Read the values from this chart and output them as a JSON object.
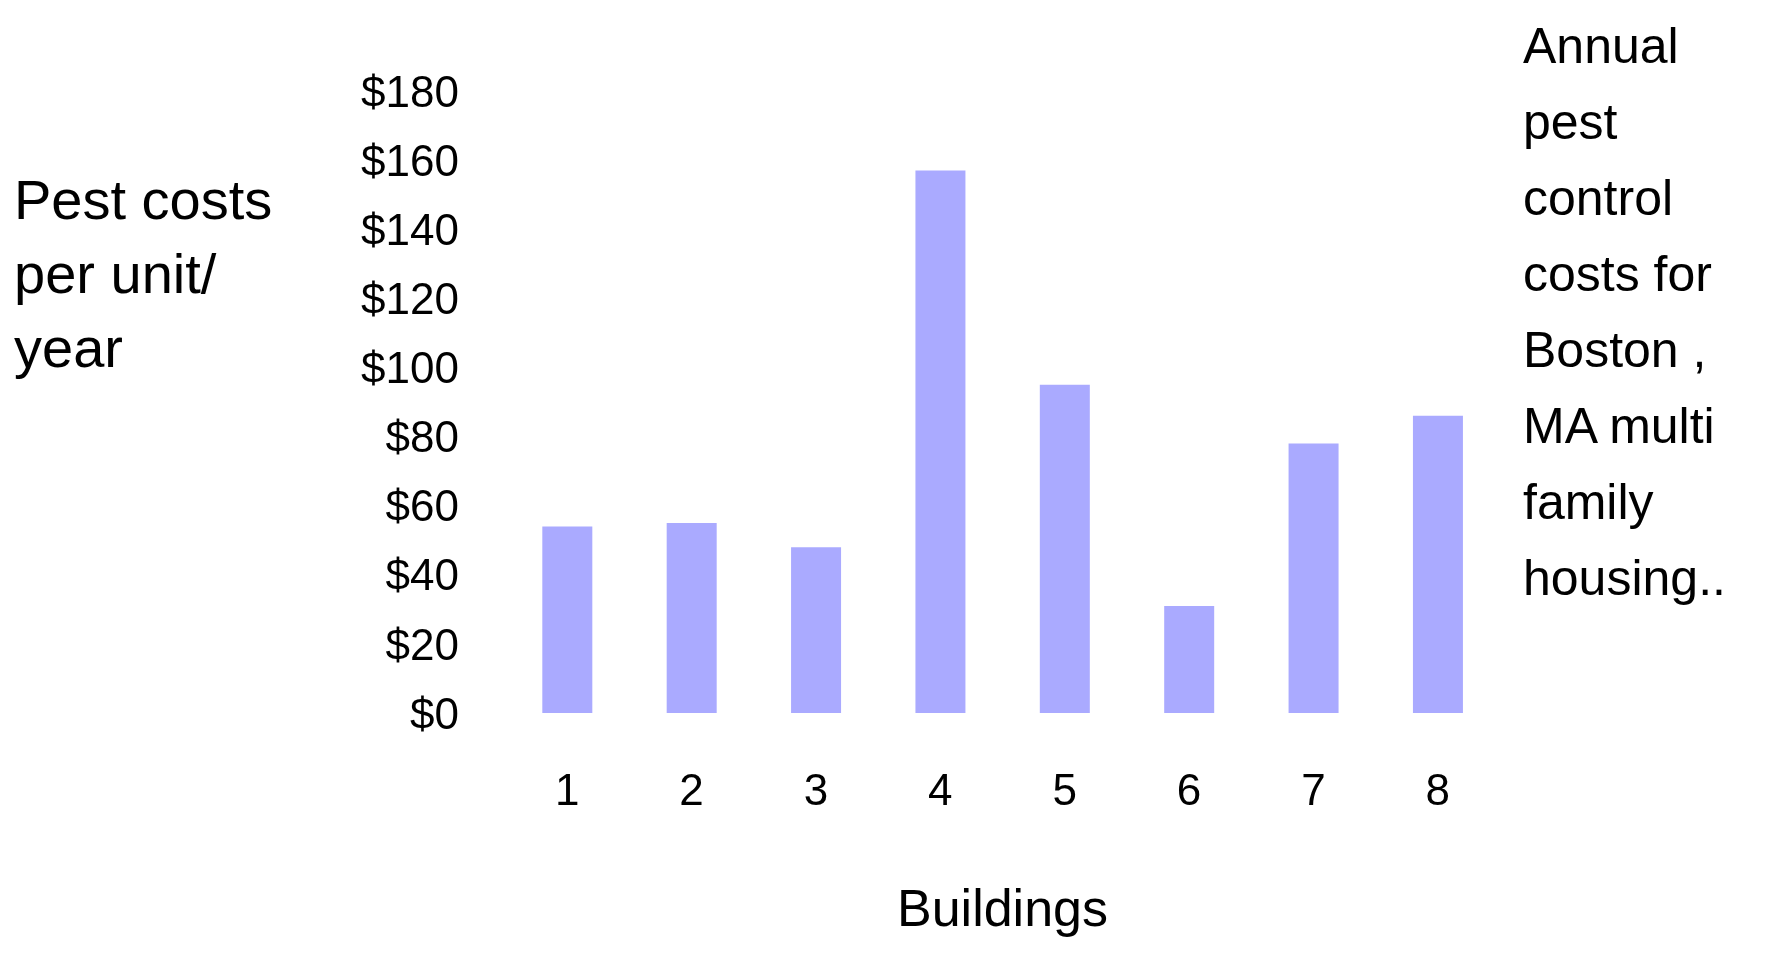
{
  "chart_data": {
    "type": "bar",
    "title": "Annual pest control costs for Boston , MA multi family housing..",
    "xlabel": "Buildings",
    "ylabel": "Pest costs per unit/ year",
    "categories": [
      "1",
      "2",
      "3",
      "4",
      "5",
      "6",
      "7",
      "8"
    ],
    "values": [
      54,
      55,
      48,
      157,
      95,
      31,
      78,
      86
    ],
    "color": "#aaaaff",
    "ylim": [
      0,
      180
    ],
    "yticks": [
      {
        "value": 0,
        "label": "$0"
      },
      {
        "value": 20,
        "label": "$20"
      },
      {
        "value": 40,
        "label": "$40"
      },
      {
        "value": 60,
        "label": "$60"
      },
      {
        "value": 80,
        "label": "$80"
      },
      {
        "value": 100,
        "label": "$100"
      },
      {
        "value": 120,
        "label": "$120"
      },
      {
        "value": 140,
        "label": "$140"
      },
      {
        "value": 160,
        "label": "$160"
      },
      {
        "value": 180,
        "label": "$180"
      }
    ]
  }
}
